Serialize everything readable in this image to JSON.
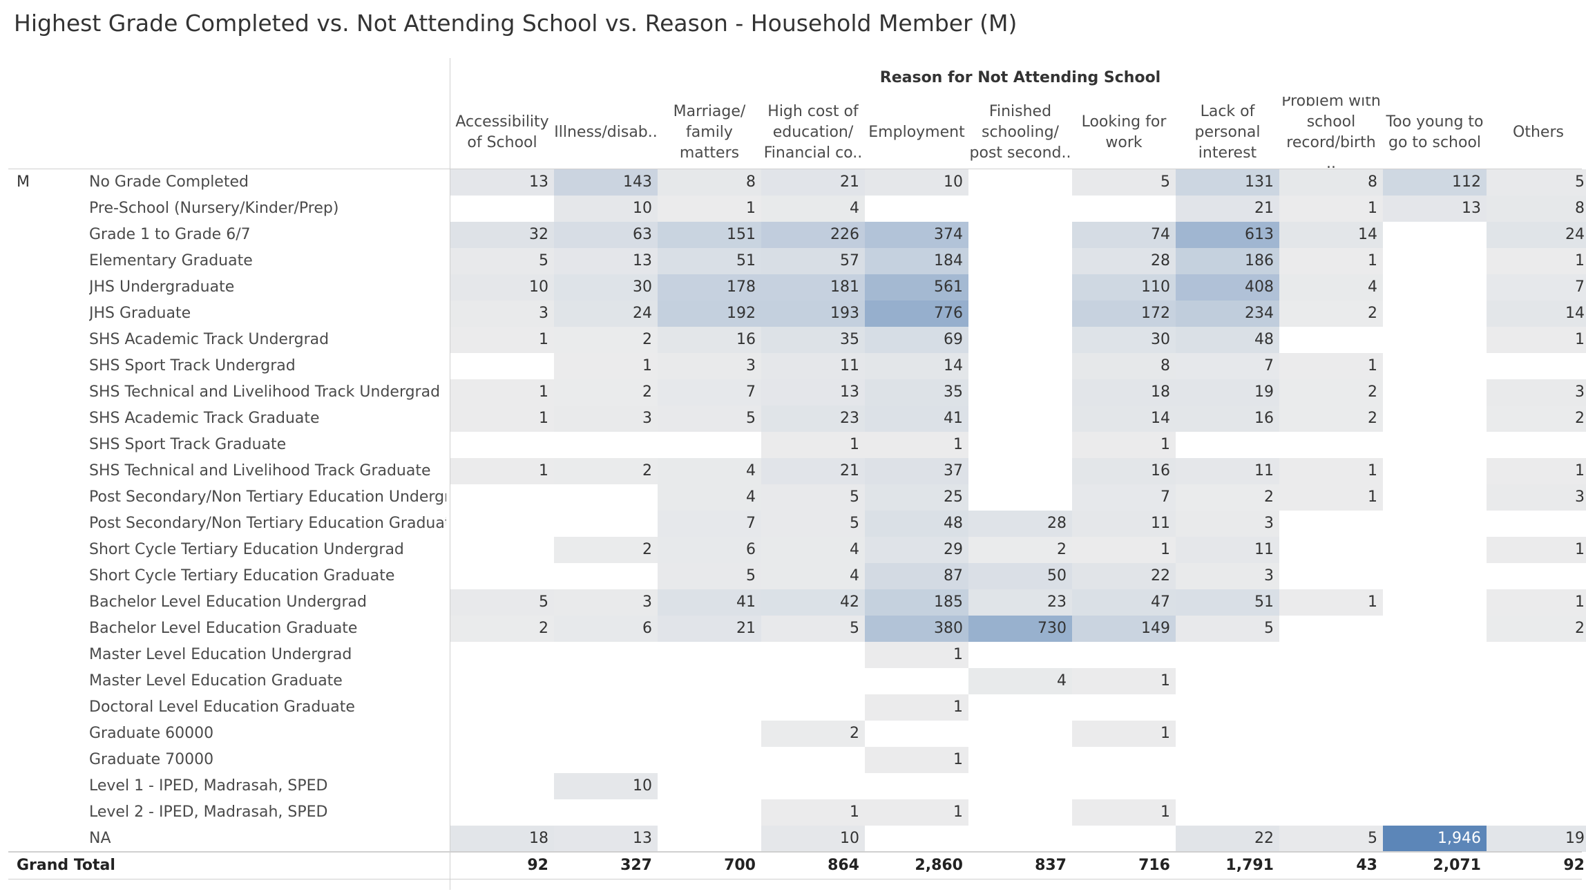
{
  "title": "Highest Grade Completed vs. Not Attending School vs. Reason - Household Member (M)",
  "column_group_label": "Reason for Not Attending School",
  "row_group_label": "M",
  "grand_total_label": "Grand Total",
  "colors": {
    "low": "#ededed",
    "high": "#5c86b8",
    "text": "#333333",
    "line": "#cfcfcf"
  },
  "chart_data": {
    "type": "table",
    "subtype": "highlight-table",
    "columns": [
      [
        "Accessibility",
        "of School"
      ],
      [
        "Illness/disab.."
      ],
      [
        "Marriage/",
        "family",
        "matters"
      ],
      [
        "High cost of",
        "education/",
        "Financial co.."
      ],
      [
        "Employment"
      ],
      [
        "Finished",
        "schooling/",
        "post second.."
      ],
      [
        "Looking for",
        "work"
      ],
      [
        "Lack of",
        "personal",
        "interest"
      ],
      [
        "Problem with",
        "school",
        "record/birth .."
      ],
      [
        "Too young to",
        "go to school"
      ],
      [
        "Others"
      ]
    ],
    "rows": [
      {
        "label": "No Grade Completed",
        "values": [
          13,
          143,
          8,
          21,
          10,
          null,
          5,
          131,
          8,
          112,
          5
        ]
      },
      {
        "label": "Pre-School (Nursery/Kinder/Prep)",
        "values": [
          null,
          10,
          1,
          4,
          null,
          null,
          null,
          21,
          1,
          13,
          8
        ]
      },
      {
        "label": "Grade 1 to Grade 6/7",
        "values": [
          32,
          63,
          151,
          226,
          374,
          null,
          74,
          613,
          14,
          null,
          24
        ]
      },
      {
        "label": "Elementary Graduate",
        "values": [
          5,
          13,
          51,
          57,
          184,
          null,
          28,
          186,
          1,
          null,
          1
        ]
      },
      {
        "label": "JHS Undergraduate",
        "values": [
          10,
          30,
          178,
          181,
          561,
          null,
          110,
          408,
          4,
          null,
          7
        ]
      },
      {
        "label": "JHS Graduate",
        "values": [
          3,
          24,
          192,
          193,
          776,
          null,
          172,
          234,
          2,
          null,
          14
        ]
      },
      {
        "label": "SHS Academic Track Undergrad",
        "values": [
          1,
          2,
          16,
          35,
          69,
          null,
          30,
          48,
          null,
          null,
          1
        ]
      },
      {
        "label": "SHS Sport Track Undergrad",
        "values": [
          null,
          1,
          3,
          11,
          14,
          null,
          8,
          7,
          1,
          null,
          null
        ]
      },
      {
        "label": "SHS Technical and Livelihood Track Undergrad",
        "values": [
          1,
          2,
          7,
          13,
          35,
          null,
          18,
          19,
          2,
          null,
          3
        ]
      },
      {
        "label": "SHS Academic Track Graduate",
        "values": [
          1,
          3,
          5,
          23,
          41,
          null,
          14,
          16,
          2,
          null,
          2
        ]
      },
      {
        "label": "SHS Sport Track Graduate",
        "values": [
          null,
          null,
          null,
          1,
          1,
          null,
          1,
          null,
          null,
          null,
          null
        ]
      },
      {
        "label": "SHS Technical and Livelihood Track Graduate",
        "values": [
          1,
          2,
          4,
          21,
          37,
          null,
          16,
          11,
          1,
          null,
          1
        ]
      },
      {
        "label": "Post Secondary/Non Tertiary Education Undergr..",
        "values": [
          null,
          null,
          4,
          5,
          25,
          null,
          7,
          2,
          1,
          null,
          3
        ]
      },
      {
        "label": "Post Secondary/Non Tertiary Education Graduate",
        "values": [
          null,
          null,
          7,
          5,
          48,
          28,
          11,
          3,
          null,
          null,
          null
        ]
      },
      {
        "label": "Short Cycle Tertiary Education Undergrad",
        "values": [
          null,
          2,
          6,
          4,
          29,
          2,
          1,
          11,
          null,
          null,
          1
        ]
      },
      {
        "label": "Short Cycle Tertiary Education Graduate",
        "values": [
          null,
          null,
          5,
          4,
          87,
          50,
          22,
          3,
          null,
          null,
          null
        ]
      },
      {
        "label": "Bachelor Level Education Undergrad",
        "values": [
          5,
          3,
          41,
          42,
          185,
          23,
          47,
          51,
          1,
          null,
          1
        ]
      },
      {
        "label": "Bachelor Level Education Graduate",
        "values": [
          2,
          6,
          21,
          5,
          380,
          730,
          149,
          5,
          null,
          null,
          2
        ]
      },
      {
        "label": "Master Level Education Undergrad",
        "values": [
          null,
          null,
          null,
          null,
          1,
          null,
          null,
          null,
          null,
          null,
          null
        ]
      },
      {
        "label": "Master Level Education Graduate",
        "values": [
          null,
          null,
          null,
          null,
          null,
          4,
          1,
          null,
          null,
          null,
          null
        ]
      },
      {
        "label": "Doctoral Level Education Graduate",
        "values": [
          null,
          null,
          null,
          null,
          1,
          null,
          null,
          null,
          null,
          null,
          null
        ]
      },
      {
        "label": "Graduate 60000",
        "values": [
          null,
          null,
          null,
          2,
          null,
          null,
          1,
          null,
          null,
          null,
          null
        ]
      },
      {
        "label": "Graduate 70000",
        "values": [
          null,
          null,
          null,
          null,
          1,
          null,
          null,
          null,
          null,
          null,
          null
        ]
      },
      {
        "label": "Level 1 - IPED, Madrasah, SPED",
        "values": [
          null,
          10,
          null,
          null,
          null,
          null,
          null,
          null,
          null,
          null,
          null
        ]
      },
      {
        "label": "Level 2 - IPED, Madrasah, SPED",
        "values": [
          null,
          null,
          null,
          1,
          1,
          null,
          1,
          null,
          null,
          null,
          null
        ]
      },
      {
        "label": "NA",
        "values": [
          18,
          13,
          null,
          10,
          null,
          null,
          null,
          22,
          5,
          1946,
          19
        ]
      }
    ],
    "grand_total": [
      "92",
      "327",
      "700",
      "864",
      "2,860",
      "837",
      "716",
      "1,791",
      "43",
      "2,071",
      "92"
    ]
  }
}
